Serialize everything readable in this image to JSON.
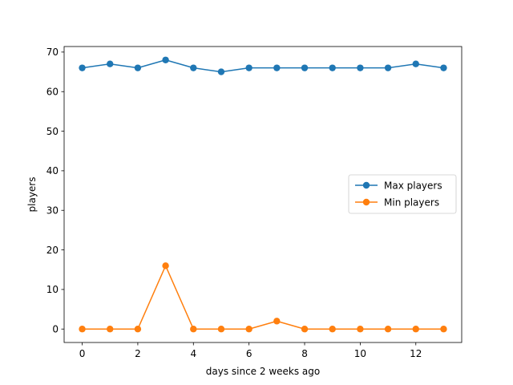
{
  "chart_data": {
    "type": "line",
    "title": "",
    "xlabel": "days since 2 weeks ago",
    "ylabel": "players",
    "xlim": [
      -0.65,
      13.65
    ],
    "ylim": [
      -3.4,
      71.4
    ],
    "xticks": [
      0,
      2,
      4,
      6,
      8,
      10,
      12
    ],
    "yticks": [
      0,
      10,
      20,
      30,
      40,
      50,
      60,
      70
    ],
    "grid": false,
    "legend_position": "center-right",
    "x": [
      0,
      1,
      2,
      3,
      4,
      5,
      6,
      7,
      8,
      9,
      10,
      11,
      12,
      13
    ],
    "series": [
      {
        "name": "Max players",
        "color": "#1f77b4",
        "marker": "circle",
        "values": [
          66,
          67,
          66,
          68,
          66,
          65,
          66,
          66,
          66,
          66,
          66,
          66,
          67,
          66
        ]
      },
      {
        "name": "Min players",
        "color": "#ff7f0e",
        "marker": "circle",
        "values": [
          0,
          0,
          0,
          16,
          0,
          0,
          0,
          2,
          0,
          0,
          0,
          0,
          0,
          0
        ]
      }
    ]
  }
}
